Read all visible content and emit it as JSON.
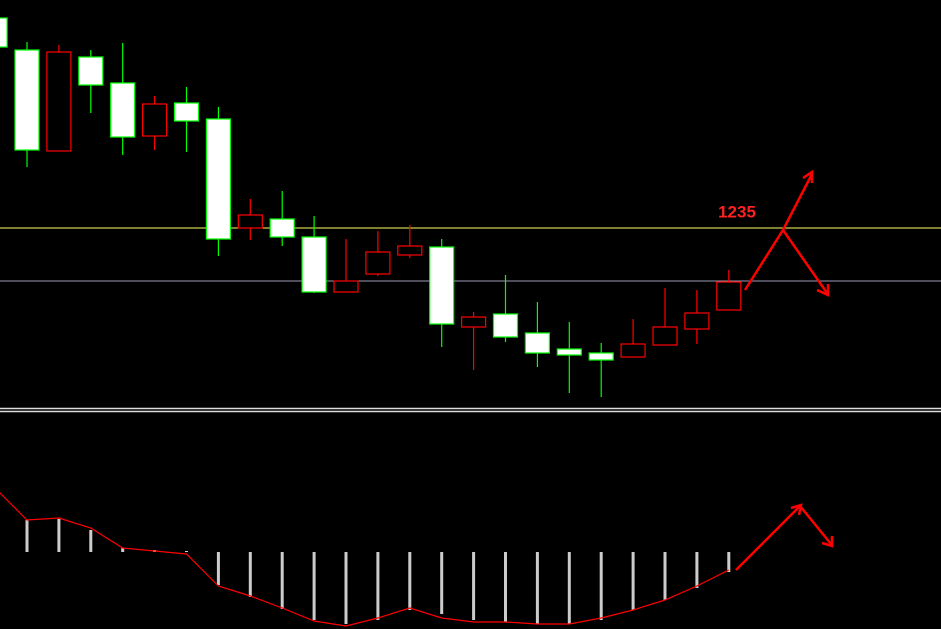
{
  "chart_data": [
    {
      "type": "candlestick",
      "open": [
        1445,
        1413,
        1312,
        1406,
        1380,
        1327,
        1360,
        1344,
        1235,
        1244,
        1226,
        1171,
        1189,
        1208,
        1216,
        1136,
        1149,
        1130,
        1114,
        1110,
        1106,
        1118,
        1134,
        1153
      ],
      "high": [
        1445,
        1421,
        1418,
        1413,
        1420,
        1367,
        1376,
        1356,
        1264,
        1272,
        1247,
        1224,
        1232,
        1238,
        1224,
        1151,
        1188,
        1161,
        1141,
        1120,
        1144,
        1175,
        1173,
        1193
      ],
      "low": [
        1416,
        1296,
        1312,
        1350,
        1308,
        1313,
        1311,
        1207,
        1223,
        1217,
        1170,
        1171,
        1187,
        1205,
        1116,
        1093,
        1121,
        1096,
        1070,
        1066,
        1106,
        1118,
        1119,
        1153
      ],
      "close": [
        1416,
        1313,
        1411,
        1378,
        1326,
        1359,
        1342,
        1224,
        1248,
        1226,
        1171,
        1182,
        1211,
        1217,
        1139,
        1146,
        1126,
        1110,
        1108,
        1103,
        1119,
        1136,
        1150,
        1181
      ],
      "up_color": "#ff0000",
      "down_color": "#ffffff",
      "down_border_color": "#00ff00",
      "levels": [
        {
          "value": 1235,
          "label": "1235",
          "color": "#ffff66"
        },
        {
          "value": 1182,
          "color": "#9a9ab8"
        }
      ],
      "ylim": [
        1055,
        1463
      ]
    },
    {
      "type": "bar-line",
      "bars": [
        null,
        32,
        33,
        22,
        4,
        2,
        1,
        -33,
        -45,
        -57,
        -68,
        -72,
        -68,
        -58,
        -62,
        -68,
        -70,
        -72,
        -72,
        -68,
        -58,
        -48,
        -36,
        -20
      ],
      "line": [
        64,
        32,
        34,
        24,
        4,
        1,
        -2,
        -34,
        -44,
        -56,
        -69,
        -74,
        -66,
        -56,
        -66,
        -70,
        -70,
        -72,
        -72,
        -66,
        -58,
        -48,
        -34,
        -18
      ],
      "bar_color": "#cccccc",
      "line_color": "#ff0000",
      "ylim": [
        -77,
        140
      ]
    }
  ]
}
